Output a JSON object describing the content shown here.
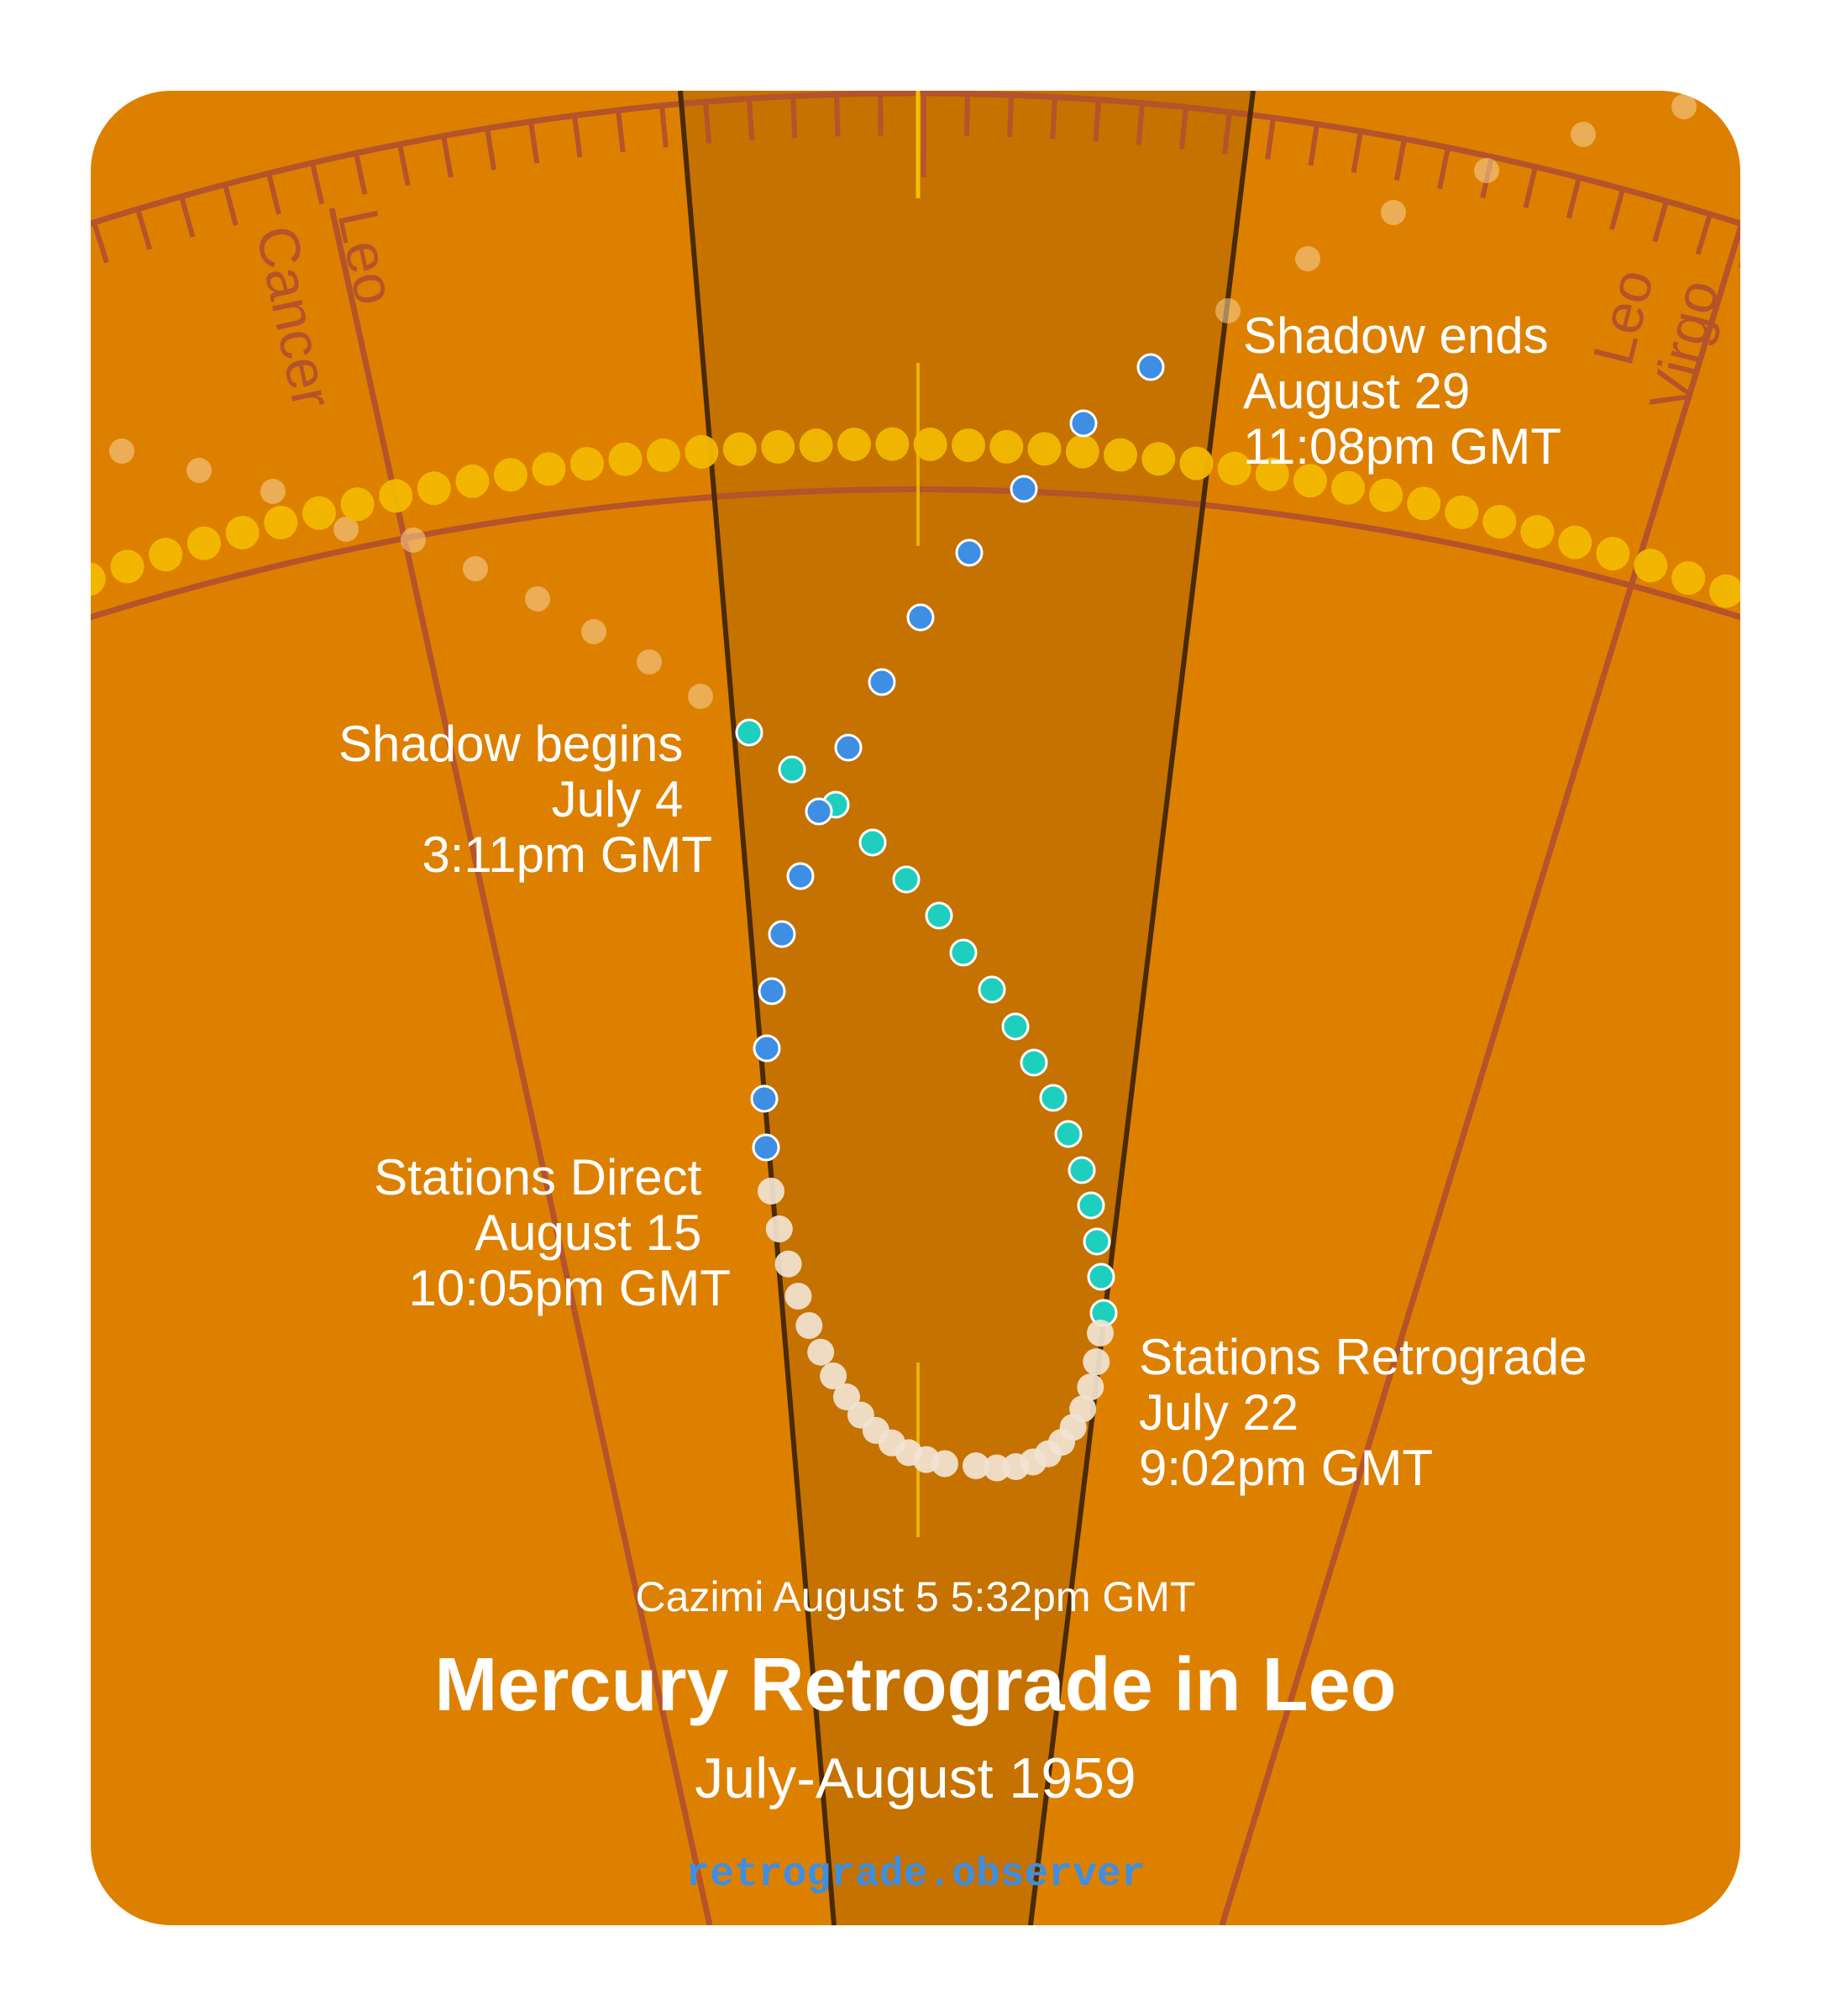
{
  "title": "Mercury Retrograde in Leo",
  "subtitle": "July-August 1959",
  "cazimi": "Cazimi August 5 5:32pm GMT",
  "footer": "retrograde.observer",
  "zodiac_labels": {
    "left_inner": "Cancer",
    "left_outer": "Leo",
    "right_inner": "Leo",
    "right_outer": "Virgo"
  },
  "events": {
    "shadow_begins": {
      "lines": [
        "Shadow begins",
        "July 4",
        "3:11pm GMT"
      ]
    },
    "shadow_ends": {
      "lines": [
        "Shadow ends",
        "August 29",
        "11:08pm GMT"
      ]
    },
    "stations_direct": {
      "lines": [
        "Stations Direct",
        "August 15",
        "10:05pm GMT"
      ]
    },
    "stations_retrograde": {
      "lines": [
        "Stations Retrograde",
        "July 22",
        "9:02pm GMT"
      ]
    }
  },
  "colors": {
    "background": "#dd8000",
    "shadow_band": "#c57200",
    "sun_path": "#f2b800",
    "pre_shadow": "#1fcfbd",
    "retrograde": "#f1e4d2",
    "post_shadow": "#3e8ee3",
    "label": "#ffffff",
    "footer": "#3e8ee3"
  }
}
